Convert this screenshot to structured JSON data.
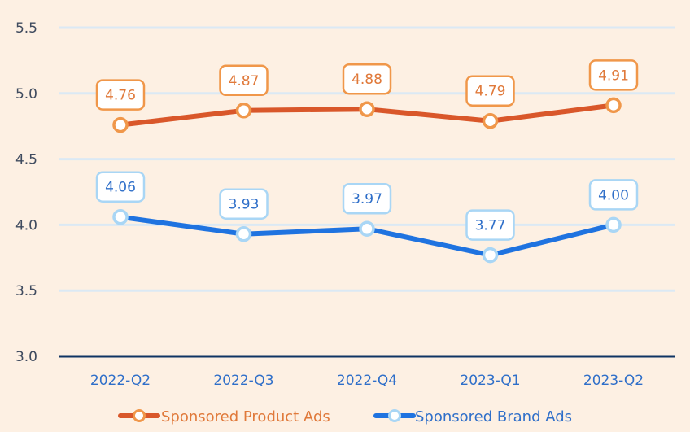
{
  "chart_data": {
    "type": "line",
    "categories": [
      "2022-Q2",
      "2022-Q3",
      "2022-Q4",
      "2023-Q1",
      "2023-Q2"
    ],
    "series": [
      {
        "name": "Sponsored Product Ads",
        "values": [
          4.76,
          4.87,
          4.88,
          4.79,
          4.91
        ],
        "labels": [
          "4.76",
          "4.87",
          "4.88",
          "4.79",
          "4.91"
        ],
        "line_color": "#d9572a",
        "accent_color": "#f0974a"
      },
      {
        "name": "Sponsored Brand Ads",
        "values": [
          4.06,
          3.93,
          3.97,
          3.77,
          4.0
        ],
        "labels": [
          "4.06",
          "3.93",
          "3.97",
          "3.77",
          "4.00"
        ],
        "line_color": "#1f73e0",
        "accent_color": "#a9d6f5"
      }
    ],
    "y_ticks": [
      "3.0",
      "3.5",
      "4.0",
      "4.5",
      "5.0",
      "5.5"
    ],
    "ylim": [
      3.0,
      5.5
    ],
    "grid": true,
    "legend": "bottom-center"
  }
}
